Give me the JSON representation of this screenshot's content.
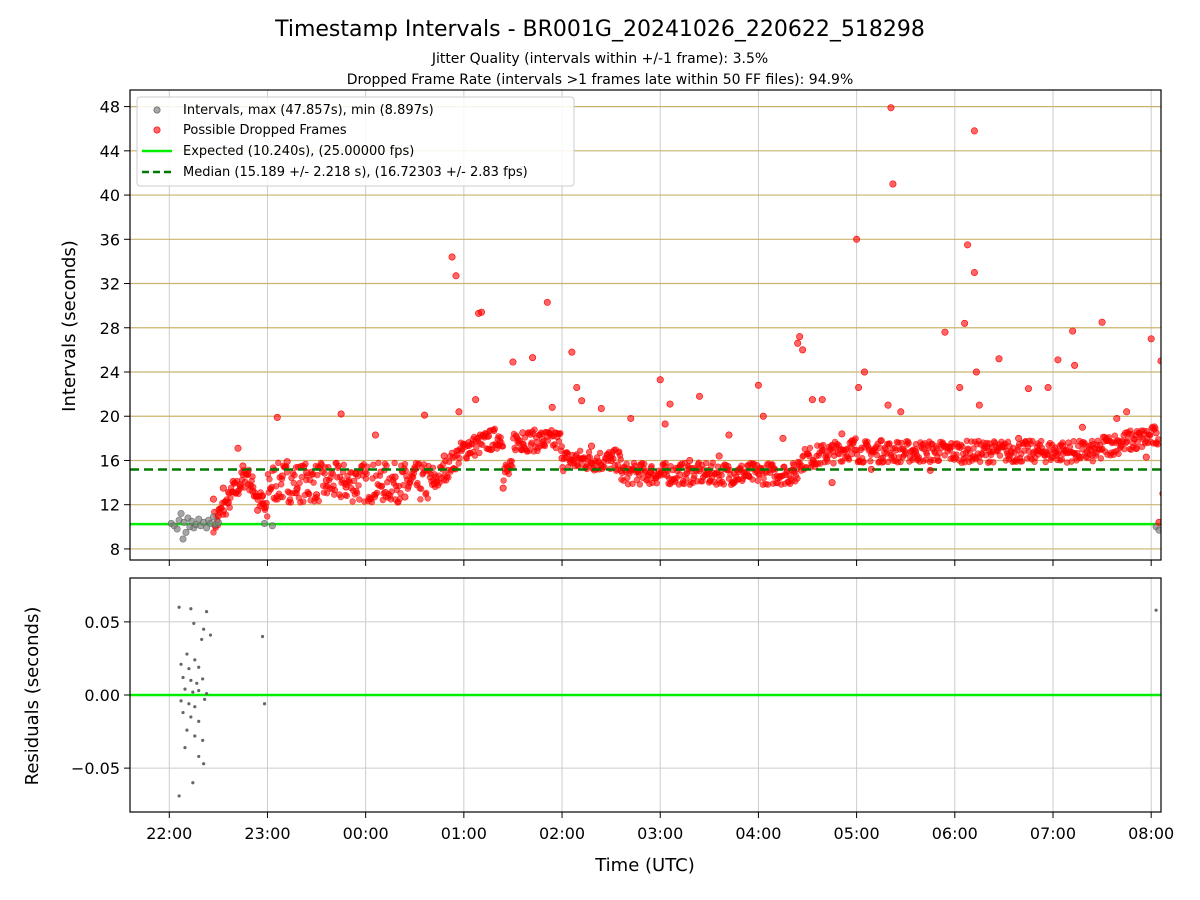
{
  "chart_data": [
    {
      "type": "scatter",
      "title": "Timestamp Intervals - BR001G_20241026_220622_518298",
      "subtitle_lines": [
        "Jitter Quality (intervals within +/-1 frame): 3.5%",
        "Dropped Frame Rate (intervals >1 frames late within 50 FF files): 94.9%"
      ],
      "xlabel": "",
      "ylabel": "Intervals (seconds)",
      "xlim_hours": [
        21.6,
        32.1
      ],
      "ylim": [
        7,
        49.5
      ],
      "yticks": [
        "8",
        "12",
        "16",
        "20",
        "24",
        "28",
        "32",
        "36",
        "40",
        "44",
        "48"
      ],
      "ytick_values": [
        8,
        12,
        16,
        20,
        24,
        28,
        32,
        36,
        40,
        44,
        48
      ],
      "grid": true,
      "legend_position": "top-left",
      "legend": [
        "Intervals, max (47.857s), min (8.897s)",
        "Possible Dropped Frames",
        "Expected (10.240s), (25.00000 fps)",
        "Median (15.189 +/- 2.218 s), (16.72303 +/- 2.83 fps)"
      ],
      "expected_interval": 10.24,
      "median_interval": 15.189,
      "colors": {
        "intervals": "#808080",
        "dropped": "#ff0000",
        "expected": "#00ee00",
        "median": "#007a00",
        "grid": "#c8b46e"
      },
      "series": [
        {
          "name": "Intervals, max (47.857s), min (8.897s)",
          "points": [
            [
              22.02,
              10.3
            ],
            [
              22.05,
              10.1
            ],
            [
              22.08,
              9.8
            ],
            [
              22.1,
              10.6
            ],
            [
              22.12,
              11.2
            ],
            [
              22.14,
              8.9
            ],
            [
              22.15,
              10.4
            ],
            [
              22.17,
              9.5
            ],
            [
              22.19,
              10.8
            ],
            [
              22.21,
              10.0
            ],
            [
              22.23,
              10.5
            ],
            [
              22.25,
              9.9
            ],
            [
              22.27,
              10.2
            ],
            [
              22.3,
              10.7
            ],
            [
              22.32,
              10.1
            ],
            [
              22.35,
              10.4
            ],
            [
              22.38,
              9.9
            ],
            [
              22.4,
              10.6
            ],
            [
              22.42,
              10.3
            ],
            [
              22.45,
              10.9
            ],
            [
              22.47,
              10.2
            ],
            [
              22.5,
              10.4
            ],
            [
              22.97,
              10.3
            ],
            [
              23.05,
              10.1
            ],
            [
              32.05,
              10.0
            ],
            [
              32.08,
              9.7
            ]
          ]
        },
        {
          "name": "Possible Dropped Frames",
          "points": [
            [
              22.45,
              12.5
            ],
            [
              22.5,
              11.0
            ],
            [
              22.55,
              13.5
            ],
            [
              22.6,
              12.2
            ],
            [
              22.65,
              14.1
            ],
            [
              22.7,
              17.1
            ],
            [
              22.72,
              13.8
            ],
            [
              22.75,
              15.5
            ],
            [
              22.8,
              14.8
            ],
            [
              22.85,
              13.2
            ],
            [
              22.9,
              11.5
            ],
            [
              22.95,
              12.8
            ],
            [
              23.1,
              19.9
            ],
            [
              23.15,
              14.6
            ],
            [
              23.2,
              15.9
            ],
            [
              23.3,
              13.4
            ],
            [
              23.4,
              14.9
            ],
            [
              23.5,
              12.9
            ],
            [
              23.6,
              14.2
            ],
            [
              23.75,
              20.2
            ],
            [
              23.8,
              13.6
            ],
            [
              23.9,
              14.8
            ],
            [
              24.1,
              18.3
            ],
            [
              24.2,
              13.1
            ],
            [
              24.3,
              14.5
            ],
            [
              24.4,
              12.7
            ],
            [
              24.5,
              15.2
            ],
            [
              24.6,
              20.1
            ],
            [
              24.7,
              13.9
            ],
            [
              24.8,
              16.4
            ],
            [
              24.88,
              34.4
            ],
            [
              24.92,
              32.7
            ],
            [
              24.95,
              20.4
            ],
            [
              25.05,
              17.6
            ],
            [
              25.12,
              21.5
            ],
            [
              25.15,
              29.3
            ],
            [
              25.18,
              29.4
            ],
            [
              25.25,
              18.2
            ],
            [
              25.35,
              17.4
            ],
            [
              25.4,
              13.5
            ],
            [
              25.5,
              24.9
            ],
            [
              25.6,
              18.5
            ],
            [
              25.7,
              25.3
            ],
            [
              25.8,
              17.9
            ],
            [
              25.85,
              30.3
            ],
            [
              25.9,
              20.8
            ],
            [
              26.0,
              16.2
            ],
            [
              26.1,
              25.8
            ],
            [
              26.15,
              22.6
            ],
            [
              26.2,
              21.4
            ],
            [
              26.3,
              17.3
            ],
            [
              26.4,
              20.7
            ],
            [
              26.5,
              16.0
            ],
            [
              26.6,
              15.1
            ],
            [
              26.7,
              19.8
            ],
            [
              26.8,
              15.6
            ],
            [
              26.9,
              14.9
            ],
            [
              27.0,
              23.3
            ],
            [
              27.05,
              19.3
            ],
            [
              27.1,
              21.1
            ],
            [
              27.2,
              14.7
            ],
            [
              27.3,
              16.0
            ],
            [
              27.4,
              21.8
            ],
            [
              27.5,
              14.8
            ],
            [
              27.6,
              16.4
            ],
            [
              27.7,
              18.3
            ],
            [
              27.8,
              15.0
            ],
            [
              27.9,
              14.6
            ],
            [
              28.0,
              22.8
            ],
            [
              28.05,
              20.0
            ],
            [
              28.15,
              15.2
            ],
            [
              28.25,
              18.0
            ],
            [
              28.35,
              15.1
            ],
            [
              28.4,
              26.6
            ],
            [
              28.42,
              27.2
            ],
            [
              28.45,
              26.0
            ],
            [
              28.55,
              21.5
            ],
            [
              28.65,
              21.5
            ],
            [
              28.75,
              14.0
            ],
            [
              28.85,
              18.4
            ],
            [
              28.95,
              16.6
            ],
            [
              29.0,
              36.0
            ],
            [
              29.02,
              22.6
            ],
            [
              29.08,
              24.0
            ],
            [
              29.15,
              15.2
            ],
            [
              29.25,
              17.8
            ],
            [
              29.32,
              21.0
            ],
            [
              29.35,
              47.9
            ],
            [
              29.37,
              41.0
            ],
            [
              29.45,
              20.4
            ],
            [
              29.6,
              16.8
            ],
            [
              29.75,
              15.1
            ],
            [
              29.9,
              27.6
            ],
            [
              29.95,
              17.2
            ],
            [
              30.05,
              22.6
            ],
            [
              30.1,
              28.4
            ],
            [
              30.13,
              35.5
            ],
            [
              30.2,
              33.0
            ],
            [
              30.22,
              24.0
            ],
            [
              30.25,
              21.0
            ],
            [
              30.2,
              45.8
            ],
            [
              30.35,
              17.5
            ],
            [
              30.45,
              25.2
            ],
            [
              30.55,
              16.4
            ],
            [
              30.65,
              18.0
            ],
            [
              30.75,
              22.5
            ],
            [
              30.85,
              16.9
            ],
            [
              30.95,
              22.6
            ],
            [
              31.05,
              25.1
            ],
            [
              31.1,
              17.3
            ],
            [
              31.2,
              27.7
            ],
            [
              31.22,
              24.6
            ],
            [
              31.3,
              19.0
            ],
            [
              31.4,
              16.5
            ],
            [
              31.5,
              28.5
            ],
            [
              31.55,
              17.8
            ],
            [
              31.65,
              19.8
            ],
            [
              31.75,
              20.4
            ],
            [
              31.85,
              17.1
            ],
            [
              31.95,
              16.3
            ],
            [
              32.0,
              27.0
            ],
            [
              32.05,
              18.5
            ],
            [
              32.1,
              25.0
            ],
            [
              32.12,
              13.0
            ],
            [
              32.08,
              10.4
            ]
          ]
        }
      ]
    },
    {
      "type": "scatter",
      "title": "",
      "xlabel": "Time (UTC)",
      "ylabel": "Residuals (seconds)",
      "xlim_hours": [
        21.6,
        32.1
      ],
      "ylim": [
        -0.08,
        0.08
      ],
      "yticks": [
        "0.05",
        "0.00",
        "−0.05"
      ],
      "ytick_values": [
        0.05,
        0.0,
        -0.05
      ],
      "xticks": [
        "22:00",
        "23:00",
        "00:00",
        "01:00",
        "02:00",
        "03:00",
        "04:00",
        "05:00",
        "06:00",
        "07:00",
        "08:00"
      ],
      "xtick_hours": [
        22,
        23,
        24,
        25,
        26,
        27,
        28,
        29,
        30,
        31,
        32
      ],
      "grid": true,
      "zero_line_color": "#00ee00",
      "point_color": "#666666",
      "points": [
        [
          22.1,
          0.06
        ],
        [
          22.22,
          0.059
        ],
        [
          22.38,
          0.057
        ],
        [
          22.25,
          0.049
        ],
        [
          22.35,
          0.045
        ],
        [
          22.42,
          0.041
        ],
        [
          22.33,
          0.038
        ],
        [
          22.12,
          0.021
        ],
        [
          22.18,
          0.028
        ],
        [
          22.2,
          0.018
        ],
        [
          22.26,
          0.024
        ],
        [
          22.3,
          0.019
        ],
        [
          22.14,
          0.012
        ],
        [
          22.22,
          0.01
        ],
        [
          22.28,
          0.008
        ],
        [
          22.34,
          0.011
        ],
        [
          22.16,
          0.004
        ],
        [
          22.24,
          0.002
        ],
        [
          22.3,
          0.003
        ],
        [
          22.38,
          0.001
        ],
        [
          22.12,
          -0.004
        ],
        [
          22.2,
          -0.006
        ],
        [
          22.26,
          -0.008
        ],
        [
          22.36,
          -0.003
        ],
        [
          22.14,
          -0.012
        ],
        [
          22.22,
          -0.015
        ],
        [
          22.3,
          -0.018
        ],
        [
          22.18,
          -0.024
        ],
        [
          22.26,
          -0.028
        ],
        [
          22.34,
          -0.031
        ],
        [
          22.16,
          -0.036
        ],
        [
          22.3,
          -0.042
        ],
        [
          22.35,
          -0.047
        ],
        [
          22.24,
          -0.06
        ],
        [
          22.1,
          -0.069
        ],
        [
          22.95,
          0.04
        ],
        [
          22.97,
          -0.006
        ],
        [
          32.05,
          0.058
        ]
      ]
    }
  ]
}
